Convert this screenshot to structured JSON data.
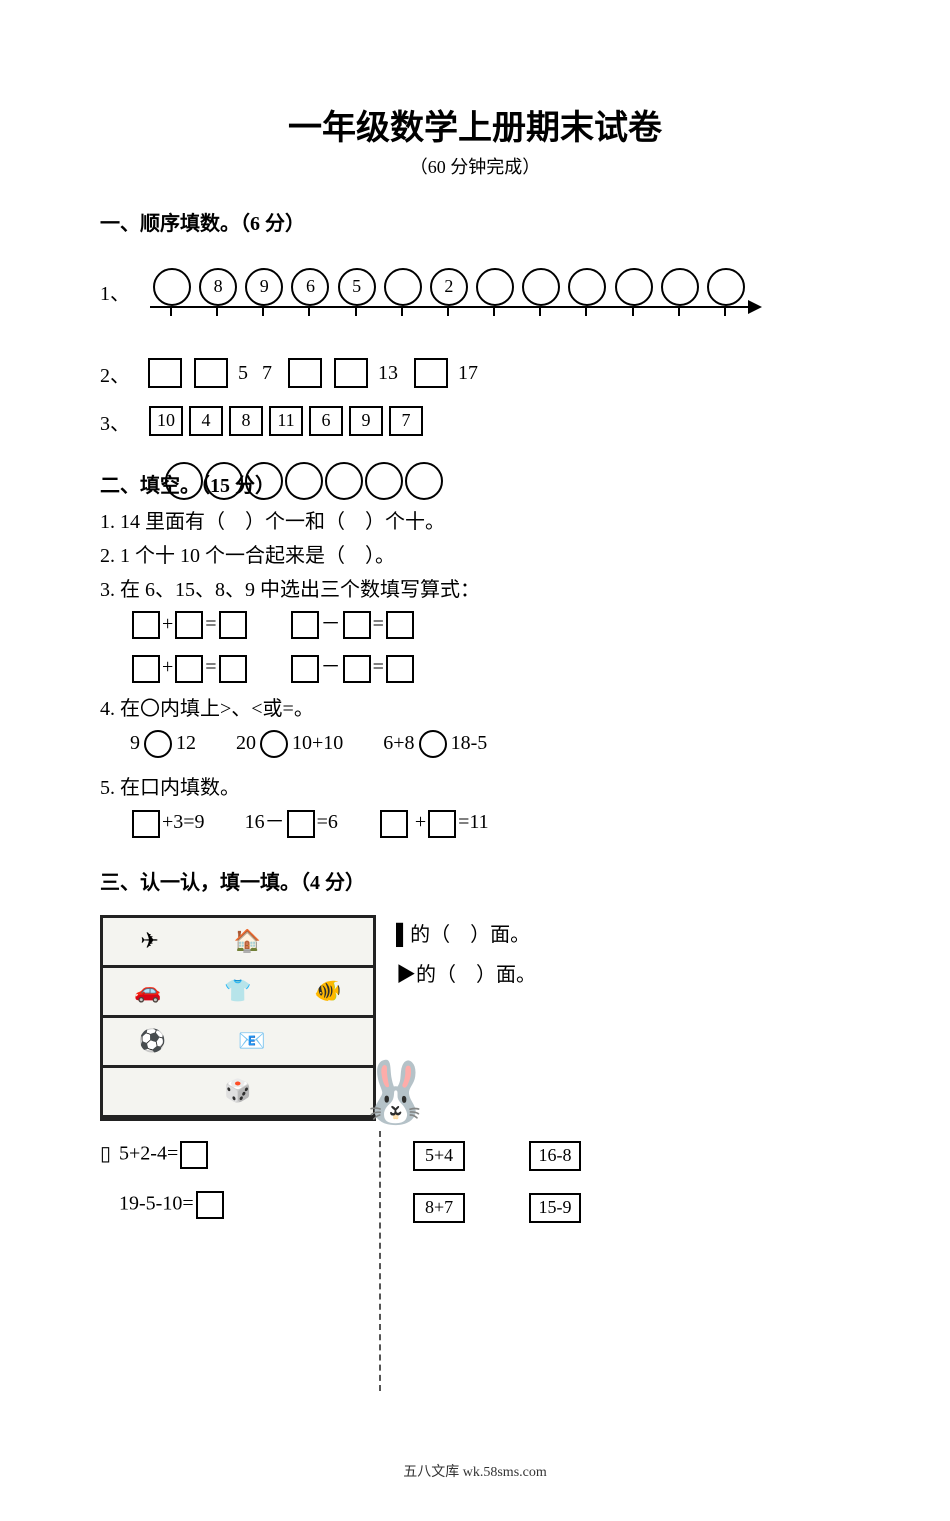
{
  "title": "一年级数学上册期末试卷",
  "subtitle": "（60 分钟完成）",
  "section1": {
    "heading": "一、顺序填数。（6 分）",
    "q1_prefix": "1、",
    "numline_count": 13,
    "numline_labels": [
      "",
      "8",
      "9",
      "6",
      "5",
      "",
      "2",
      "",
      "",
      "",
      "",
      "",
      ""
    ],
    "q2_prefix": "2、",
    "q2_items": [
      {
        "type": "box",
        "text": ""
      },
      {
        "type": "box",
        "text": ""
      },
      {
        "type": "text",
        "text": "5"
      },
      {
        "type": "text",
        "text": "7"
      },
      {
        "type": "box",
        "text": ""
      },
      {
        "type": "box",
        "text": ""
      },
      {
        "type": "text",
        "text": "13"
      },
      {
        "type": "box",
        "text": ""
      },
      {
        "type": "text",
        "text": "17"
      }
    ],
    "q3_prefix": "3、",
    "q3_items": [
      "10",
      "4",
      "8",
      "11",
      "6",
      "9",
      "7"
    ]
  },
  "section2": {
    "heading": "二、填空。（15 分）",
    "overlay_circles": 7,
    "q1": "1. 14 里面有（　）个一和（　）个十。",
    "q2": "2. 1 个十 10 个一合起来是（　）。",
    "q3": "3. 在 6、15、8、9 中选出三个数填写算式：",
    "q4_head": "4. 在〇内填上>、<或=。",
    "q4_a_left": "9",
    "q4_a_right": "12",
    "q4_b_left": "20",
    "q4_b_right": "10+10",
    "q4_c_left": "6+8",
    "q4_c_right": "18-5",
    "q5_head": "5. 在口内填数。",
    "q5_a_tail": "+3=9",
    "q5_b_head": "16－",
    "q5_b_tail": "=6",
    "q5_c_tail": "=11"
  },
  "section3": {
    "heading": "三、认一认，填一填。（4 分）",
    "shelf_rows": [
      [
        "✈",
        "🏠",
        ""
      ],
      [
        "🚗",
        "👕",
        "🐠"
      ],
      [
        "⚽",
        "📧",
        ""
      ],
      [
        "",
        "🎲",
        ""
      ]
    ],
    "right_line1": "的（　）面。",
    "right_line2": "的（　）面。",
    "rabbit": "🐰"
  },
  "section4": {
    "left_prefix_glyph": "▯",
    "left_rows": [
      {
        "lhs": "5+2-4="
      },
      {
        "lhs": "19-5-10="
      }
    ],
    "right_rows": [
      [
        "5+4",
        "16-8"
      ],
      [
        "8+7",
        "15-9"
      ]
    ]
  },
  "footer": "五八文库 wk.58sms.com"
}
